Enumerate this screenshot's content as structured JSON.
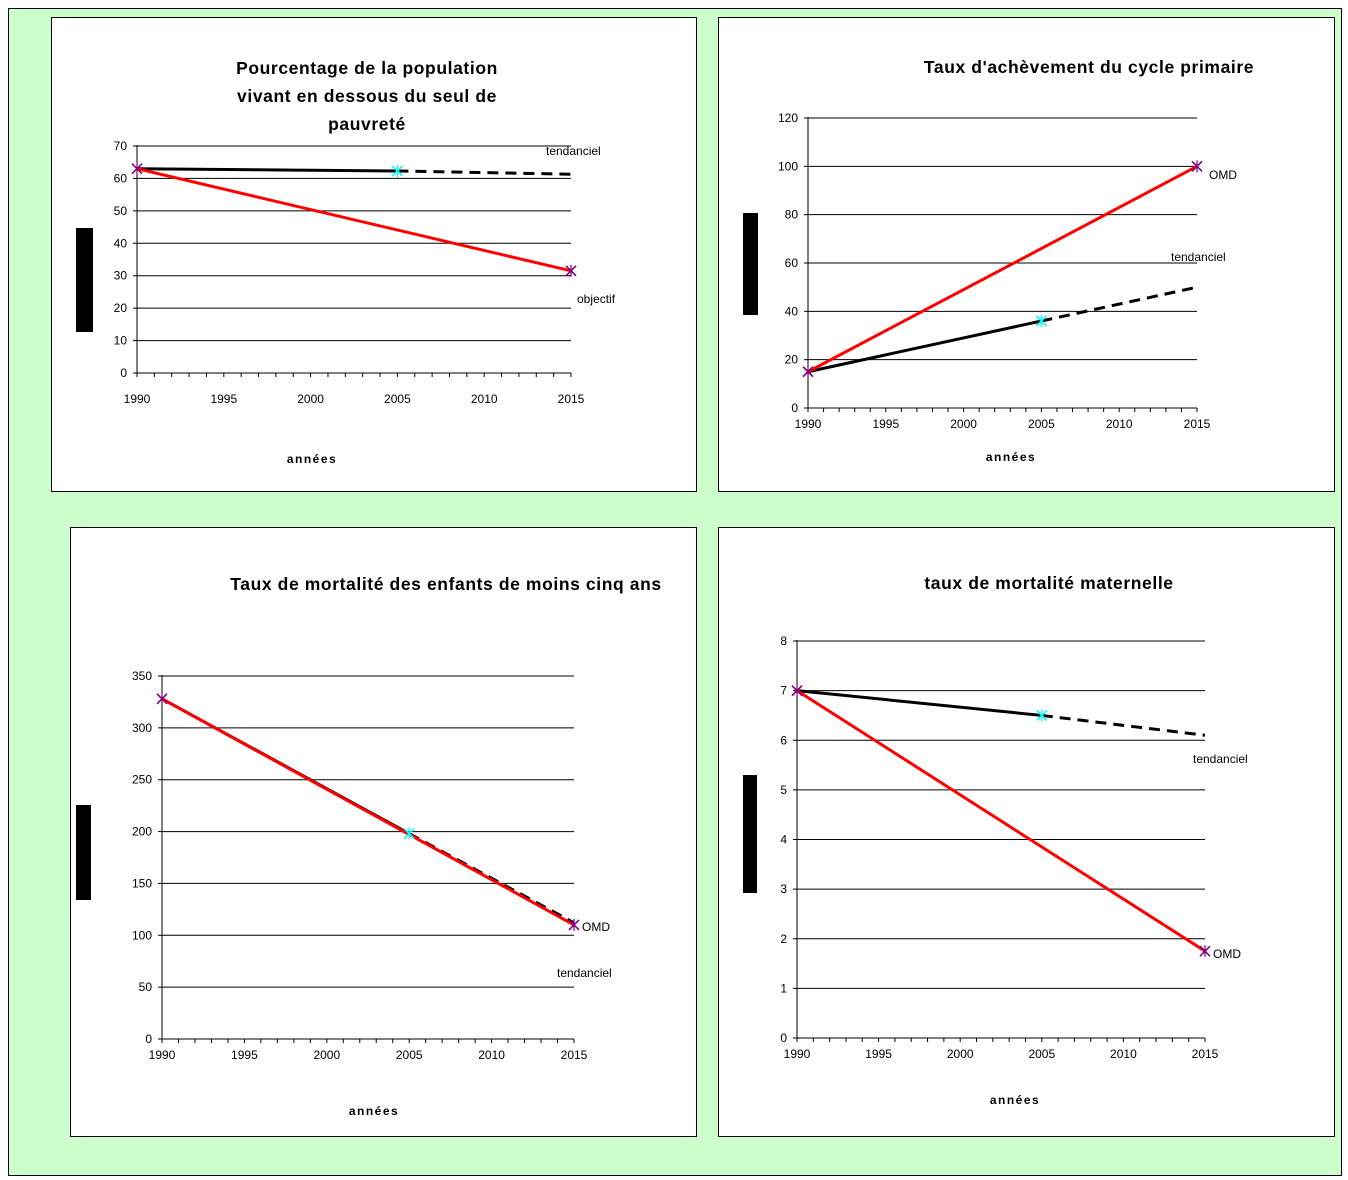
{
  "colors": {
    "background": "#ccffcc",
    "objective_line": "#ff0000",
    "trend_line": "#000000",
    "marker_start": "#800080",
    "marker_2005": "#00ffff",
    "marker_2005_alt": "#ffff00"
  },
  "chart_data": [
    {
      "type": "line",
      "title": "Pourcentage de la population vivant en dessous du seul de pauvreté",
      "xlabel": "années",
      "ylabel": "",
      "x_ticks": [
        1990,
        1995,
        2000,
        2005,
        2010,
        2015
      ],
      "y_ticks": [
        0,
        10,
        20,
        30,
        40,
        50,
        60,
        70
      ],
      "xlim": [
        1990,
        2015
      ],
      "ylim": [
        0,
        70
      ],
      "grid": true,
      "series": [
        {
          "role": "objective",
          "x": [
            1990,
            2015
          ],
          "y": [
            63,
            31.5
          ],
          "label": "objectif"
        },
        {
          "role": "observed",
          "x": [
            1990,
            2005
          ],
          "y": [
            63,
            62.3
          ]
        },
        {
          "role": "projection",
          "x": [
            2005,
            2015
          ],
          "y": [
            62.3,
            61.3
          ],
          "label": "tendanciel"
        }
      ]
    },
    {
      "type": "line",
      "title": "Taux d'achèvement du cycle primaire",
      "xlabel": "années",
      "ylabel": "",
      "x_ticks": [
        1990,
        1995,
        2000,
        2005,
        2010,
        2015
      ],
      "y_ticks": [
        0,
        20,
        40,
        60,
        80,
        100,
        120
      ],
      "xlim": [
        1990,
        2015
      ],
      "ylim": [
        0,
        120
      ],
      "grid": true,
      "series": [
        {
          "role": "objective",
          "x": [
            1990,
            2015
          ],
          "y": [
            15,
            100
          ],
          "label": "OMD"
        },
        {
          "role": "observed",
          "x": [
            1990,
            2005
          ],
          "y": [
            15,
            36
          ]
        },
        {
          "role": "projection",
          "x": [
            2005,
            2015
          ],
          "y": [
            36,
            50
          ],
          "label": "tendanciel"
        }
      ]
    },
    {
      "type": "line",
      "title": "Taux de mortalité des enfants de moins cinq ans",
      "xlabel": "années",
      "ylabel": "",
      "x_ticks": [
        1990,
        1995,
        2000,
        2005,
        2010,
        2015
      ],
      "y_ticks": [
        0,
        50,
        100,
        150,
        200,
        250,
        300,
        350
      ],
      "xlim": [
        1990,
        2015
      ],
      "ylim": [
        0,
        350
      ],
      "grid": true,
      "series": [
        {
          "role": "objective",
          "x": [
            1990,
            2015
          ],
          "y": [
            328,
            110
          ],
          "label": "OMD"
        },
        {
          "role": "observed",
          "x": [
            1990,
            2005
          ],
          "y": [
            328,
            198
          ]
        },
        {
          "role": "projection",
          "x": [
            2005,
            2015
          ],
          "y": [
            198,
            112
          ],
          "label": "tendanciel"
        }
      ]
    },
    {
      "type": "line",
      "title": "taux de mortalité maternelle",
      "xlabel": "années",
      "ylabel": "",
      "x_ticks": [
        1990,
        1995,
        2000,
        2005,
        2010,
        2015
      ],
      "y_ticks": [
        0,
        1,
        2,
        3,
        4,
        5,
        6,
        7,
        8
      ],
      "xlim": [
        1990,
        2015
      ],
      "ylim": [
        0,
        8
      ],
      "grid": true,
      "series": [
        {
          "role": "objective",
          "x": [
            1990,
            2015
          ],
          "y": [
            7,
            1.75
          ],
          "label": "OMD"
        },
        {
          "role": "observed",
          "x": [
            1990,
            2005
          ],
          "y": [
            7,
            6.5
          ]
        },
        {
          "role": "projection",
          "x": [
            2005,
            2015
          ],
          "y": [
            6.5,
            6.1
          ],
          "label": "tendanciel"
        }
      ]
    }
  ]
}
